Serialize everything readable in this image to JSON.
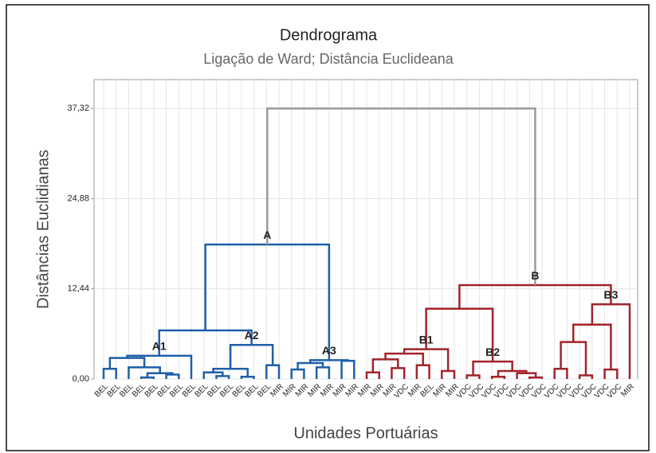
{
  "chart_data": {
    "type": "dendrogram",
    "title": "Dendrograma",
    "subtitle": "Ligação de Ward; Distância Euclideana",
    "y_label": "Distâncias Euclidianas",
    "x_label": "Unidades Portuárias",
    "ylim": [
      0,
      41.3
    ],
    "yticks": [
      {
        "value": 0,
        "label": "0,00"
      },
      {
        "value": 12.44,
        "label": "12,44"
      },
      {
        "value": 24.88,
        "label": "24,88"
      },
      {
        "value": 37.32,
        "label": "37,32"
      }
    ],
    "grid": true,
    "leaves": [
      "BEL",
      "BEL",
      "BEL",
      "BEL",
      "BEL",
      "BEL",
      "BEL",
      "BEL",
      "BEL",
      "BEL",
      "BEL",
      "BEL",
      "BEL",
      "BEL",
      "MIR",
      "MIR",
      "MIR",
      "MIR",
      "MIR",
      "MIR",
      "MIR",
      "MIR",
      "MIR",
      "MIR",
      "VDC",
      "MIR",
      "BEL",
      "MIR",
      "MIR",
      "VDC",
      "VDC",
      "VDC",
      "VDC",
      "VDC",
      "VDC",
      "VDC",
      "VDC",
      "VDC",
      "VDC",
      "VDC",
      "VDC",
      "VDC",
      "MIR"
    ],
    "tree": {
      "height": 37.32,
      "color": "#9a9a9a",
      "children": [
        {
          "height": 18.55,
          "label": "A",
          "color": "#1f5fa8",
          "children": [
            {
              "height": 6.7,
              "children": [
                {
                  "height": 3.2,
                  "label": "A1",
                  "children": [
                    {
                      "height": 2.9,
                      "children": [
                        {
                          "height": 1.4,
                          "children": [
                            0,
                            1
                          ]
                        },
                        {
                          "height": 1.6,
                          "children": [
                            2,
                            {
                              "height": 0.8,
                              "children": [
                                {
                                  "height": 0.2,
                                  "children": [
                                    3,
                                    4
                                  ]
                                },
                                {
                                  "height": 0.6,
                                  "children": [
                                    5,
                                    6
                                  ]
                                }
                              ]
                            }
                          ]
                        }
                      ]
                    },
                    7
                  ]
                },
                {
                  "height": 4.7,
                  "label": "A2",
                  "children": [
                    {
                      "height": 1.4,
                      "children": [
                        {
                          "height": 0.9,
                          "children": [
                            8,
                            {
                              "height": 0.4,
                              "children": [
                                9,
                                10
                              ]
                            }
                          ]
                        },
                        {
                          "height": 0.3,
                          "children": [
                            11,
                            12
                          ]
                        }
                      ]
                    },
                    {
                      "height": 1.9,
                      "children": [
                        13,
                        14
                      ]
                    }
                  ]
                }
              ]
            },
            {
              "height": 2.6,
              "label": "A3",
              "children": [
                {
                  "height": 2.2,
                  "children": [
                    {
                      "height": 1.3,
                      "children": [
                        15,
                        16
                      ]
                    },
                    {
                      "height": 1.6,
                      "children": [
                        17,
                        18
                      ]
                    }
                  ]
                },
                {
                  "height": 2.5,
                  "children": [
                    19,
                    20
                  ]
                }
              ]
            }
          ]
        },
        {
          "height": 12.95,
          "label": "B",
          "color": "#a1242a",
          "children": [
            {
              "height": 9.7,
              "children": [
                {
                  "height": 4.1,
                  "label": "B1",
                  "children": [
                    {
                      "height": 3.5,
                      "children": [
                        {
                          "height": 2.7,
                          "children": [
                            {
                              "height": 0.9,
                              "children": [
                                21,
                                22
                              ]
                            },
                            {
                              "height": 1.5,
                              "children": [
                                23,
                                24
                              ]
                            }
                          ]
                        },
                        {
                          "height": 1.9,
                          "children": [
                            25,
                            26
                          ]
                        }
                      ]
                    },
                    {
                      "height": 1.1,
                      "children": [
                        27,
                        28
                      ]
                    }
                  ]
                },
                {
                  "height": 2.4,
                  "label": "B2",
                  "children": [
                    {
                      "height": 0.5,
                      "children": [
                        29,
                        30
                      ]
                    },
                    {
                      "height": 1.1,
                      "children": [
                        {
                          "height": 0.3,
                          "children": [
                            31,
                            32
                          ]
                        },
                        {
                          "height": 0.8,
                          "children": [
                            33,
                            {
                              "height": 0.2,
                              "children": [
                                34,
                                35
                              ]
                            }
                          ]
                        }
                      ]
                    }
                  ]
                }
              ]
            },
            {
              "height": 10.3,
              "label": "B3",
              "children": [
                {
                  "height": 7.5,
                  "children": [
                    {
                      "height": 5.1,
                      "children": [
                        {
                          "height": 1.4,
                          "children": [
                            36,
                            37
                          ]
                        },
                        {
                          "height": 0.5,
                          "children": [
                            38,
                            39
                          ]
                        }
                      ]
                    },
                    {
                      "height": 1.3,
                      "children": [
                        40,
                        41
                      ]
                    }
                  ]
                },
                42
              ]
            }
          ]
        }
      ]
    }
  }
}
